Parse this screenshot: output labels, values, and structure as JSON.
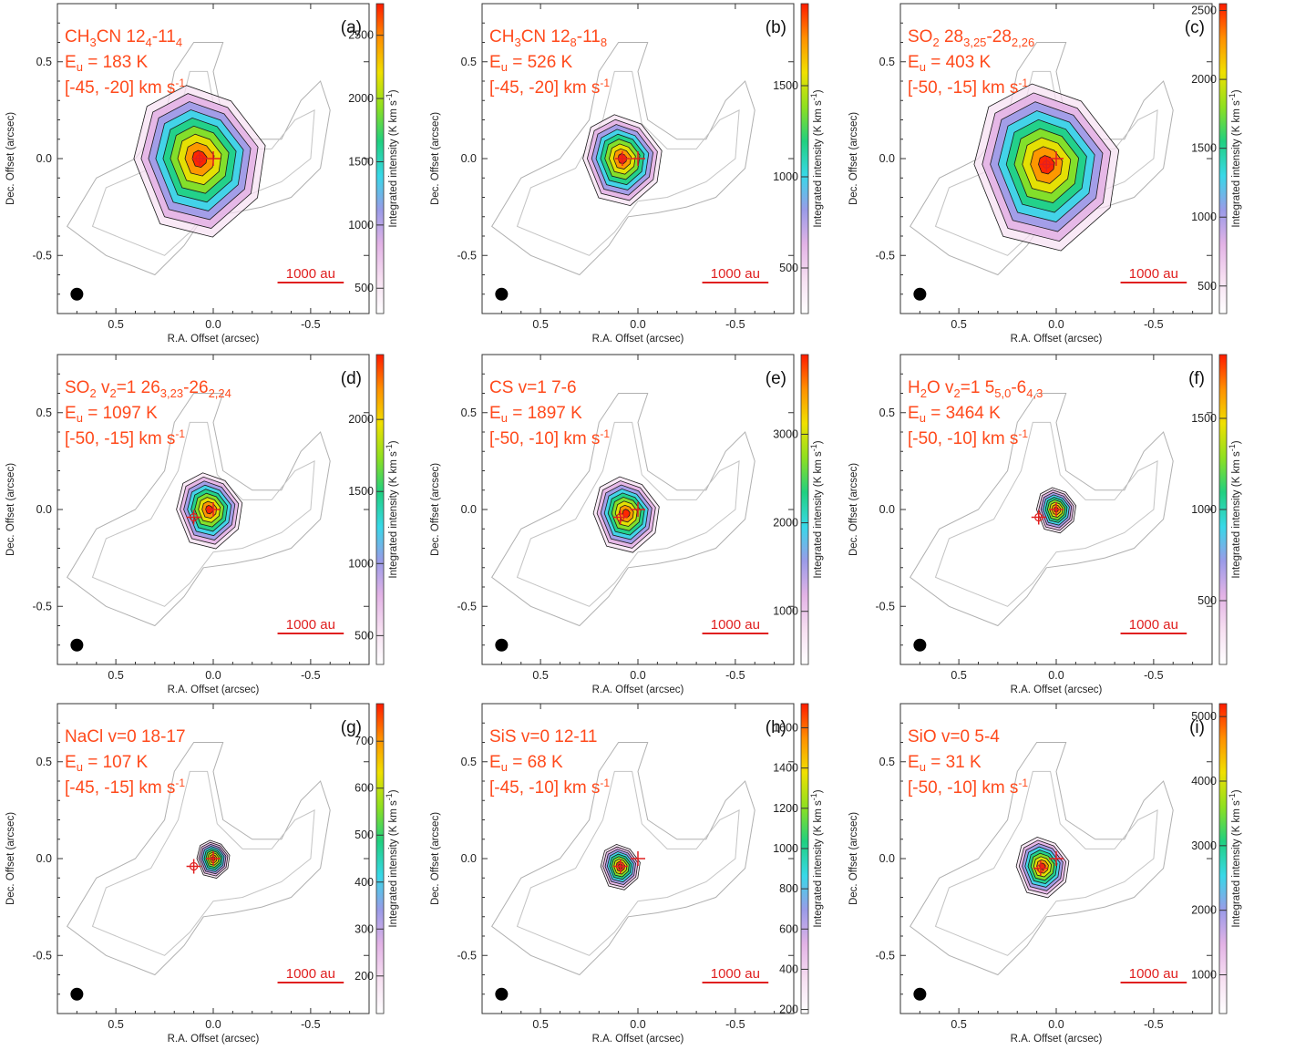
{
  "figure": {
    "panel_count": 9,
    "layout": "3x3 grid"
  },
  "common": {
    "xlabel": "R.A. Offset (arcsec)",
    "ylabel": "Dec. Offset (arcsec)",
    "colorbar_label": "Integrated intensity (K km s",
    "colorbar_label_unit_sup": "-1",
    "colorbar_label_close": ")",
    "scale_bar_label": "1000 au",
    "x_ticks": [
      "0.5",
      "0.0",
      "-0.5"
    ],
    "y_ticks": [
      "0.5",
      "0.0",
      "-0.5"
    ],
    "colors": {
      "title_text": "#ff4a1c",
      "scale_bar": "#e02020",
      "marker": "#e02020",
      "beam": "#000000",
      "colormap": [
        "#ffffff",
        "#f7e0f2",
        "#e3b3e6",
        "#9b9be8",
        "#38d8e8",
        "#20d080",
        "#8ee020",
        "#f0e000",
        "#ff9000",
        "#ff1a00"
      ]
    }
  },
  "chart_data": [
    {
      "type": "heatmap",
      "panel": "(a)",
      "species": "CH",
      "species_sub": "3",
      "species_rest": "CN 12",
      "t1_sub": "4",
      "t1_mid": "-11",
      "t2_sub": "4",
      "eu": "= 183 K",
      "vrange": "[-45, -20] km s",
      "x_range": [
        0.8,
        -0.8
      ],
      "y_range": [
        -0.8,
        0.8
      ],
      "colorbar_range": [
        300,
        2750
      ],
      "colorbar_ticks": [
        "500",
        "1000",
        "1500",
        "2000",
        "2500"
      ],
      "colorbar_tick_values": [
        500,
        1000,
        1500,
        2000,
        2500
      ],
      "markers": [
        [
          0.07,
          0.0
        ],
        [
          0.0,
          0.0
        ]
      ],
      "peak": [
        0.07,
        0.0
      ],
      "extent": 1.0
    },
    {
      "type": "heatmap",
      "panel": "(b)",
      "species": "CH",
      "species_sub": "3",
      "species_rest": "CN 12",
      "t1_sub": "8",
      "t1_mid": "-11",
      "t2_sub": "8",
      "eu": "= 526 K",
      "vrange": "[-45, -20] km s",
      "x_range": [
        0.8,
        -0.8
      ],
      "y_range": [
        -0.8,
        0.8
      ],
      "colorbar_range": [
        250,
        1950
      ],
      "colorbar_ticks": [
        "500",
        "1000",
        "1500"
      ],
      "colorbar_tick_values": [
        500,
        1000,
        1500
      ],
      "markers": [
        [
          0.08,
          0.0
        ],
        [
          0.0,
          0.0
        ]
      ],
      "peak": [
        0.08,
        0.0
      ],
      "extent": 0.6
    },
    {
      "type": "heatmap",
      "panel": "(c)",
      "species": "SO",
      "species_sub": "2",
      "species_rest": " 28",
      "t1_sub": "3,25",
      "t1_mid": "-28",
      "t2_sub": "2,26",
      "eu": "= 403 K",
      "vrange": "[-50, -15] km s",
      "x_range": [
        0.8,
        -0.8
      ],
      "y_range": [
        -0.8,
        0.8
      ],
      "colorbar_range": [
        300,
        2550
      ],
      "colorbar_ticks": [
        "500",
        "1000",
        "1500",
        "2000",
        "2500"
      ],
      "colorbar_tick_values": [
        500,
        1000,
        1500,
        2000,
        2500
      ],
      "markers": [
        [
          0.05,
          -0.03
        ],
        [
          0.0,
          0.0
        ]
      ],
      "peak": [
        0.05,
        -0.03
      ],
      "extent": 1.1
    },
    {
      "type": "heatmap",
      "panel": "(d)",
      "species": "SO",
      "species_sub": "2",
      "species_rest": " v",
      "t1_sub": "2",
      "t1_mid": "=1 26",
      "t2_sub": "3,23",
      "species_extra": "-26",
      "species_extra_sub": "2,24",
      "eu": "= 1097 K",
      "vrange": "[-50, -15] km s",
      "x_range": [
        0.8,
        -0.8
      ],
      "y_range": [
        -0.8,
        0.8
      ],
      "colorbar_range": [
        300,
        2450
      ],
      "colorbar_ticks": [
        "500",
        "1000",
        "1500",
        "2000"
      ],
      "colorbar_tick_values": [
        500,
        1000,
        1500,
        2000
      ],
      "markers": [
        [
          0.1,
          -0.04
        ],
        [
          0.0,
          0.0
        ]
      ],
      "peak": [
        0.02,
        0.0
      ],
      "extent": 0.5
    },
    {
      "type": "heatmap",
      "panel": "(e)",
      "species": "CS v=1 7-6",
      "species_sub": "",
      "species_rest": "",
      "t1_sub": "",
      "t1_mid": "",
      "t2_sub": "",
      "eu": "= 1897 K",
      "vrange": "[-50, -10] km s",
      "x_range": [
        0.8,
        -0.8
      ],
      "y_range": [
        -0.8,
        0.8
      ],
      "colorbar_range": [
        400,
        3900
      ],
      "colorbar_ticks": [
        "1000",
        "2000",
        "3000"
      ],
      "colorbar_tick_values": [
        1000,
        2000,
        3000
      ],
      "markers": [
        [
          0.09,
          -0.04
        ],
        [
          0.0,
          0.0
        ]
      ],
      "peak": [
        0.06,
        -0.02
      ],
      "extent": 0.5
    },
    {
      "type": "heatmap",
      "panel": "(f)",
      "species": "H",
      "species_sub": "2",
      "species_rest": "O v",
      "t1_sub": "2",
      "t1_mid": "=1 5",
      "t2_sub": "5,0",
      "species_extra": "-6",
      "species_extra_sub": "4,3",
      "eu": "= 3464 K",
      "vrange": "[-50, -10] km s",
      "x_range": [
        0.8,
        -0.8
      ],
      "y_range": [
        -0.8,
        0.8
      ],
      "colorbar_range": [
        150,
        1850
      ],
      "colorbar_ticks": [
        "500",
        "1000",
        "1500"
      ],
      "colorbar_tick_values": [
        500,
        1000,
        1500
      ],
      "markers": [
        [
          0.09,
          -0.04
        ],
        [
          0.0,
          0.0
        ]
      ],
      "peak": [
        0.0,
        0.0
      ],
      "extent": 0.3
    },
    {
      "type": "heatmap",
      "panel": "(g)",
      "species": "NaCl v=0 18-17",
      "species_sub": "",
      "species_rest": "",
      "t1_sub": "",
      "t1_mid": "",
      "t2_sub": "",
      "eu": "= 107 K",
      "vrange": "[-45, -15] km s",
      "x_range": [
        0.8,
        -0.8
      ],
      "y_range": [
        -0.8,
        0.8
      ],
      "colorbar_range": [
        120,
        780
      ],
      "colorbar_ticks": [
        "200",
        "300",
        "400",
        "500",
        "600",
        "700"
      ],
      "colorbar_tick_values": [
        200,
        300,
        400,
        500,
        600,
        700
      ],
      "markers": [
        [
          0.1,
          -0.04
        ],
        [
          0.0,
          0.0
        ]
      ],
      "peak": [
        0.0,
        0.0
      ],
      "extent": 0.25
    },
    {
      "type": "heatmap",
      "panel": "(h)",
      "species": "SiS v=0 12-11",
      "species_sub": "",
      "species_rest": "",
      "t1_sub": "",
      "t1_mid": "",
      "t2_sub": "",
      "eu": "= 68 K",
      "vrange": "[-45, -10] km s",
      "x_range": [
        0.8,
        -0.8
      ],
      "y_range": [
        -0.8,
        0.8
      ],
      "colorbar_range": [
        180,
        1720
      ],
      "colorbar_ticks": [
        "200",
        "400",
        "600",
        "800",
        "1000",
        "1200",
        "1400",
        "1600"
      ],
      "colorbar_tick_values": [
        200,
        400,
        600,
        800,
        1000,
        1200,
        1400,
        1600
      ],
      "markers": [
        [
          0.09,
          -0.04
        ],
        [
          0.0,
          0.0
        ]
      ],
      "peak": [
        0.09,
        -0.04
      ],
      "extent": 0.3
    },
    {
      "type": "heatmap",
      "panel": "(i)",
      "species": "SiO v=0 5-4",
      "species_sub": "",
      "species_rest": "",
      "t1_sub": "",
      "t1_mid": "",
      "t2_sub": "",
      "eu": "= 31 K",
      "vrange": "[-50, -10] km s",
      "x_range": [
        0.8,
        -0.8
      ],
      "y_range": [
        -0.8,
        0.8
      ],
      "colorbar_range": [
        400,
        5200
      ],
      "colorbar_ticks": [
        "1000",
        "2000",
        "3000",
        "4000",
        "5000"
      ],
      "colorbar_tick_values": [
        1000,
        2000,
        3000,
        4000,
        5000
      ],
      "markers": [
        [
          0.08,
          -0.05
        ],
        [
          0.0,
          0.0
        ]
      ],
      "peak": [
        0.07,
        -0.04
      ],
      "extent": 0.4
    }
  ]
}
